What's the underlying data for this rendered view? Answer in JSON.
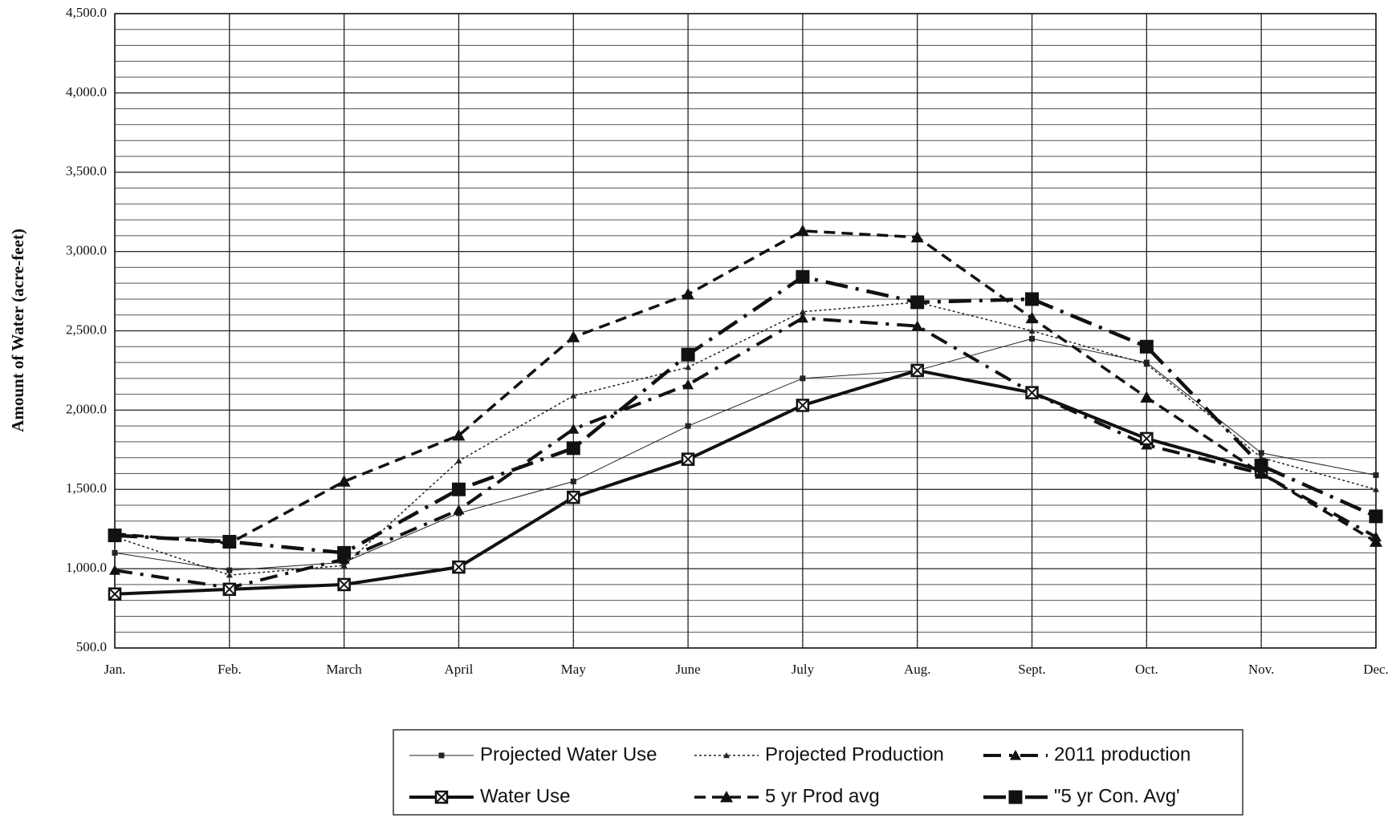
{
  "chart_data": {
    "type": "line",
    "y_label": "Amount of Water (acre-feet)",
    "categories": [
      "Jan.",
      "Feb.",
      "March",
      "April",
      "May",
      "June",
      "July",
      "Aug.",
      "Sept.",
      "Oct.",
      "Nov.",
      "Dec."
    ],
    "ylim": [
      500,
      4500
    ],
    "yticks": [
      {
        "value": 500,
        "label": "500.0"
      },
      {
        "value": 1000,
        "label": "1,000.0"
      },
      {
        "value": 1500,
        "label": "1,500.0"
      },
      {
        "value": 2000,
        "label": "2,000.0"
      },
      {
        "value": 2500,
        "label": "2,500.0"
      },
      {
        "value": 3000,
        "label": "3,000.0"
      },
      {
        "value": 3500,
        "label": "3,500.0"
      },
      {
        "value": 4000,
        "label": "4,000.0"
      },
      {
        "value": 4500,
        "label": "4,500.0"
      }
    ],
    "grid": true,
    "legend": "bottom",
    "series": [
      {
        "name": "Projected Water Use",
        "color": "#222222",
        "dash": "none",
        "line_width": 1,
        "marker": "square",
        "marker_size": 7,
        "values": [
          1100,
          990,
          1040,
          1350,
          1550,
          1900,
          2200,
          2250,
          2450,
          2300,
          1730,
          1590
        ]
      },
      {
        "name": "Projected Production",
        "color": "#222222",
        "dash": "3,3",
        "line_width": 1.5,
        "marker": "triangle",
        "marker_size": 8,
        "values": [
          1200,
          960,
          1020,
          1680,
          2090,
          2270,
          2620,
          2680,
          2500,
          2290,
          1700,
          1500
        ]
      },
      {
        "name": "2011 production",
        "color": "#111111",
        "dash": "22,10,4,10",
        "line_width": 4,
        "marker": "triangle",
        "marker_size": 14,
        "values": [
          990,
          880,
          1060,
          1370,
          1880,
          2160,
          2580,
          2530,
          2110,
          1780,
          1600,
          1200
        ]
      },
      {
        "name": "Water Use",
        "color": "#111111",
        "dash": "none",
        "line_width": 4,
        "marker": "crossed-square",
        "marker_size": 14,
        "values": [
          840,
          870,
          900,
          1010,
          1450,
          1690,
          2030,
          2250,
          2110,
          1820,
          1620,
          null
        ]
      },
      {
        "name": "5 yr Prod avg",
        "color": "#111111",
        "dash": "14,8",
        "line_width": 3.5,
        "marker": "triangle",
        "marker_size": 16,
        "values": [
          1220,
          1160,
          1550,
          1840,
          2460,
          2730,
          3130,
          3090,
          2580,
          2080,
          1600,
          1170
        ]
      },
      {
        "name": "\"5 yr Con. Avg'",
        "color": "#111111",
        "dash": "28,10,4,10",
        "line_width": 4.5,
        "marker": "square",
        "marker_size": 17,
        "values": [
          1210,
          1170,
          1100,
          1500,
          1760,
          2350,
          2840,
          2680,
          2700,
          2400,
          1650,
          1330
        ]
      }
    ]
  }
}
